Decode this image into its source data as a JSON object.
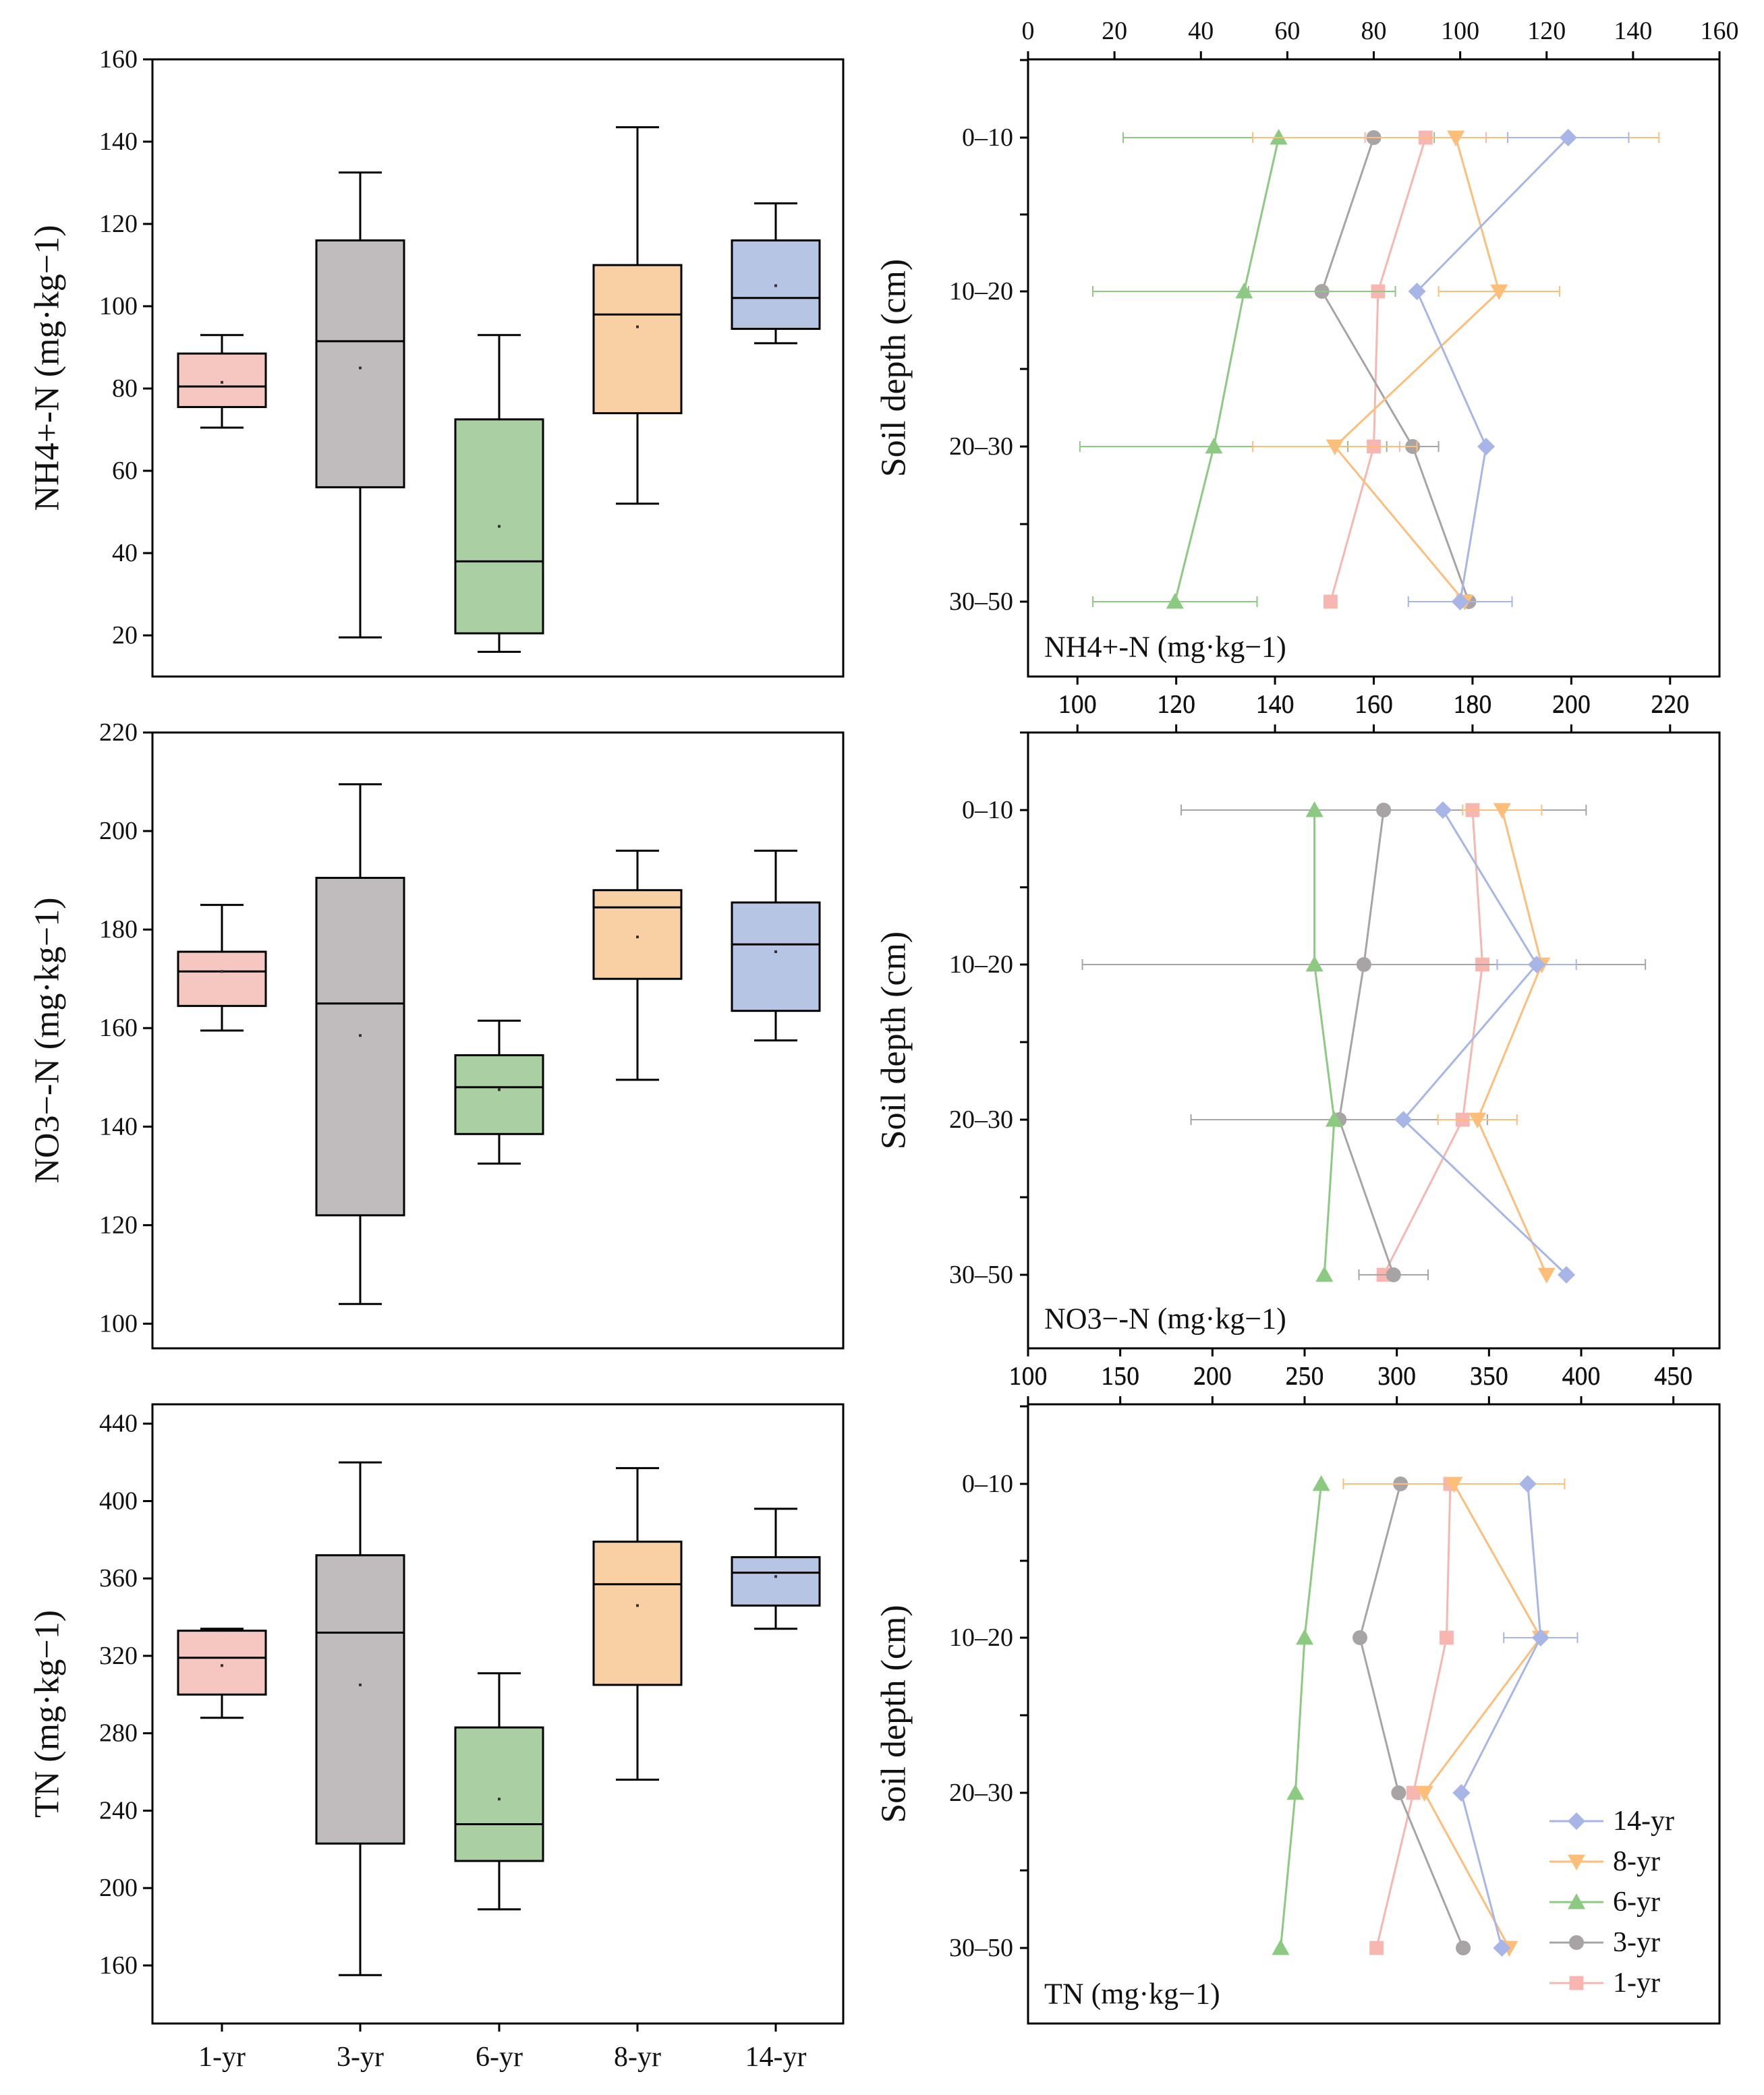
{
  "categories": [
    "1-yr",
    "3-yr",
    "6-yr",
    "8-yr",
    "14-yr"
  ],
  "colors": {
    "1-yr": "#F6C6C1",
    "3-yr": "#C0BCBD",
    "6-yr": "#A9CFA2",
    "8-yr": "#F9D0A3",
    "14-yr": "#B5C5E3",
    "line_1-yr": "#F7B7B0",
    "line_3-yr": "#A8A4A5",
    "line_6-yr": "#8CC981",
    "line_8-yr": "#FDBE7A",
    "line_14-yr": "#A7B6E6"
  },
  "markers": {
    "14-yr": "diamond",
    "8-yr": "triangle-down",
    "6-yr": "triangle-up",
    "3-yr": "circle",
    "1-yr": "square"
  },
  "chart_data": [
    {
      "type": "box",
      "id": "box-nh4",
      "ylabel": "NH4+-N (mg·kg−1)",
      "ylim": [
        10,
        160
      ],
      "yticks": [
        20,
        40,
        60,
        80,
        100,
        120,
        140,
        160
      ],
      "categories": [
        "1-yr",
        "3-yr",
        "6-yr",
        "8-yr",
        "14-yr"
      ],
      "boxes": [
        {
          "min": 70.5,
          "q1": 75.5,
          "median": 80.5,
          "q3": 88.5,
          "max": 93,
          "mean": 81.5
        },
        {
          "min": 19.5,
          "q1": 56,
          "median": 91.5,
          "q3": 116,
          "max": 132.5,
          "mean": 85
        },
        {
          "min": 16,
          "q1": 20.5,
          "median": 38,
          "q3": 72.5,
          "max": 93,
          "mean": 46.5
        },
        {
          "min": 52,
          "q1": 74,
          "median": 98,
          "q3": 110,
          "max": 143.5,
          "mean": 95
        },
        {
          "min": 91,
          "q1": 94.5,
          "median": 102,
          "q3": 116,
          "max": 125,
          "mean": 105
        }
      ]
    },
    {
      "type": "box",
      "id": "box-no3",
      "ylabel": "NO3−-N (mg·kg−1)",
      "ylim": [
        95,
        220
      ],
      "yticks": [
        100,
        120,
        140,
        160,
        180,
        200,
        220
      ],
      "categories": [
        "1-yr",
        "3-yr",
        "6-yr",
        "8-yr",
        "14-yr"
      ],
      "boxes": [
        {
          "min": 159.5,
          "q1": 164.5,
          "median": 171.5,
          "q3": 175.5,
          "max": 185,
          "mean": 171.5
        },
        {
          "min": 104,
          "q1": 122,
          "median": 165,
          "q3": 190.5,
          "max": 209.5,
          "mean": 158.5
        },
        {
          "min": 132.5,
          "q1": 138.5,
          "median": 148,
          "q3": 154.5,
          "max": 161.5,
          "mean": 147.5
        },
        {
          "min": 149.5,
          "q1": 170,
          "median": 184.5,
          "q3": 188,
          "max": 196,
          "mean": 178.5
        },
        {
          "min": 157.5,
          "q1": 163.5,
          "median": 177,
          "q3": 185.5,
          "max": 196,
          "mean": 175.5
        }
      ]
    },
    {
      "type": "box",
      "id": "box-tn",
      "ylabel": "TN (mg·kg−1)",
      "ylim": [
        130,
        450
      ],
      "yticks": [
        160,
        200,
        240,
        280,
        320,
        360,
        400,
        440
      ],
      "xticks": [
        "1-yr",
        "3-yr",
        "6-yr",
        "8-yr",
        "14-yr"
      ],
      "categories": [
        "1-yr",
        "3-yr",
        "6-yr",
        "8-yr",
        "14-yr"
      ],
      "boxes": [
        {
          "min": 288,
          "q1": 300,
          "median": 319,
          "q3": 333,
          "max": 334,
          "mean": 315
        },
        {
          "min": 155,
          "q1": 223,
          "median": 332,
          "q3": 372,
          "max": 420,
          "mean": 305
        },
        {
          "min": 189,
          "q1": 214,
          "median": 233,
          "q3": 283,
          "max": 311,
          "mean": 246
        },
        {
          "min": 256,
          "q1": 305,
          "median": 357,
          "q3": 379,
          "max": 417,
          "mean": 346
        },
        {
          "min": 334,
          "q1": 346,
          "median": 363,
          "q3": 371,
          "max": 396,
          "mean": 361
        }
      ]
    },
    {
      "type": "line",
      "id": "depth-nh4",
      "ylabel": "Soil depth (cm)",
      "axis_label": "NH4+-N (mg·kg−1)",
      "depth_labels": [
        "0–10",
        "10–20",
        "20–30",
        "30–50"
      ],
      "x_axes": [
        {
          "position": "top",
          "ticks": [
            0,
            20,
            40,
            60,
            80,
            100,
            120,
            140,
            160
          ],
          "range": [
            0,
            160
          ],
          "series": [
            "1-yr",
            "3-yr",
            "6-yr",
            "8-yr",
            "14-yr"
          ]
        },
        {
          "position": "bottom",
          "ticks": [
            100,
            120,
            140,
            160,
            180,
            200,
            220
          ],
          "range": [
            90,
            230
          ],
          "series": []
        }
      ],
      "series": [
        {
          "name": "14-yr",
          "values": [
            125,
            90,
            106,
            100
          ],
          "errors": [
            14,
            0,
            0,
            12
          ]
        },
        {
          "name": "8-yr",
          "values": [
            99,
            109,
            71,
            101
          ],
          "errors": [
            47,
            14,
            19,
            0
          ]
        },
        {
          "name": "6-yr",
          "values": [
            58,
            50,
            43,
            34
          ],
          "errors": [
            36,
            35,
            31,
            19
          ]
        },
        {
          "name": "3-yr",
          "values": [
            80,
            68,
            89,
            102
          ],
          "errors": [
            0,
            17,
            6,
            0
          ]
        },
        {
          "name": "1-yr",
          "values": [
            92,
            81,
            80,
            70
          ],
          "errors": [
            14,
            0,
            6,
            0
          ]
        }
      ]
    },
    {
      "type": "line",
      "id": "depth-no3",
      "ylabel": "Soil depth (cm)",
      "axis_label": "NO3−-N (mg·kg−1)",
      "depth_labels": [
        "0–10",
        "10–20",
        "20–30",
        "30–50"
      ],
      "x_axes": [
        {
          "position": "top",
          "ticks": [
            100,
            120,
            140,
            160,
            180,
            200,
            220
          ],
          "range": [
            90,
            230
          ]
        },
        {
          "position": "bottom",
          "ticks": [
            100,
            150,
            200,
            250,
            300,
            350,
            400,
            450
          ],
          "range": [
            100,
            475
          ]
        }
      ],
      "series": [
        {
          "name": "14-yr",
          "values": [
            174,
            193,
            166,
            199
          ],
          "errors": [
            0,
            8,
            0,
            0
          ]
        },
        {
          "name": "8-yr",
          "values": [
            186,
            194,
            181,
            195
          ],
          "errors": [
            8,
            0,
            8,
            0
          ]
        },
        {
          "name": "6-yr",
          "values": [
            148,
            148,
            152,
            150
          ],
          "errors": [
            0,
            0,
            0,
            0
          ]
        },
        {
          "name": "3-yr",
          "values": [
            162,
            158,
            153,
            164
          ],
          "errors": [
            41,
            57,
            30,
            7
          ]
        },
        {
          "name": "1-yr",
          "values": [
            180,
            182,
            178,
            162
          ],
          "errors": [
            0,
            0,
            0,
            0
          ]
        }
      ]
    },
    {
      "type": "line",
      "id": "depth-tn",
      "ylabel": "Soil depth (cm)",
      "axis_label": "TN (mg·kg−1)",
      "depth_labels": [
        "0–10",
        "10–20",
        "20–30",
        "30–50"
      ],
      "x_axes": [
        {
          "position": "top",
          "ticks": [
            100,
            150,
            200,
            250,
            300,
            350,
            400,
            450
          ],
          "range": [
            100,
            475
          ]
        }
      ],
      "series": [
        {
          "name": "14-yr",
          "values": [
            371,
            378,
            335,
            357
          ],
          "errors": [
            0,
            20,
            0,
            0
          ]
        },
        {
          "name": "8-yr",
          "values": [
            331,
            378,
            315,
            361
          ],
          "errors": [
            60,
            0,
            0,
            0
          ]
        },
        {
          "name": "6-yr",
          "values": [
            259,
            250,
            245,
            237
          ],
          "errors": [
            0,
            0,
            0,
            0
          ]
        },
        {
          "name": "3-yr",
          "values": [
            302,
            280,
            301,
            336
          ],
          "errors": [
            0,
            0,
            0,
            0
          ]
        },
        {
          "name": "1-yr",
          "values": [
            329,
            327,
            309,
            289
          ],
          "errors": [
            0,
            0,
            0,
            0
          ]
        }
      ]
    }
  ],
  "legend": [
    {
      "name": "14-yr"
    },
    {
      "name": "8-yr"
    },
    {
      "name": "6-yr"
    },
    {
      "name": "3-yr"
    },
    {
      "name": "1-yr"
    }
  ]
}
